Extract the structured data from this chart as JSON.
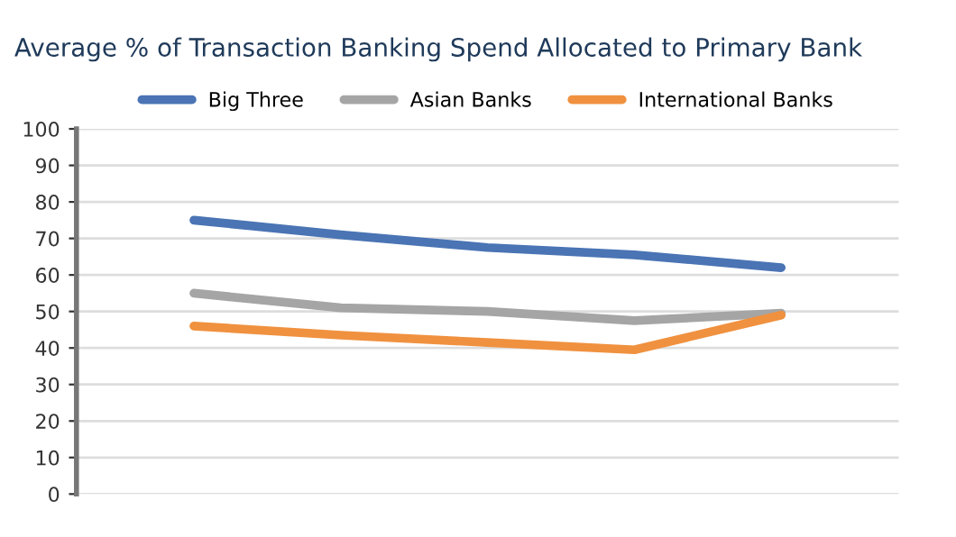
{
  "chart_data": {
    "type": "line",
    "title": "Average % of Transaction Banking Spend Allocated to Primary Bank",
    "categories": [
      null,
      null,
      null,
      null,
      null
    ],
    "series": [
      {
        "name": "Big Three",
        "color": "#4a74b4",
        "values": [
          75,
          71,
          67.5,
          65.5,
          62
        ]
      },
      {
        "name": "Asian Banks",
        "color": "#a5a5a5",
        "values": [
          55,
          51,
          50,
          47.5,
          49.5
        ]
      },
      {
        "name": "International Banks",
        "color": "#f0913f",
        "values": [
          46,
          43.5,
          41.5,
          39.5,
          49
        ]
      }
    ],
    "ylim": [
      0,
      100
    ],
    "yticks": [
      0,
      10,
      20,
      30,
      40,
      50,
      60,
      70,
      80,
      90,
      100
    ],
    "grid": "y",
    "legend": "top",
    "line_style": "solid",
    "marker": "none"
  }
}
